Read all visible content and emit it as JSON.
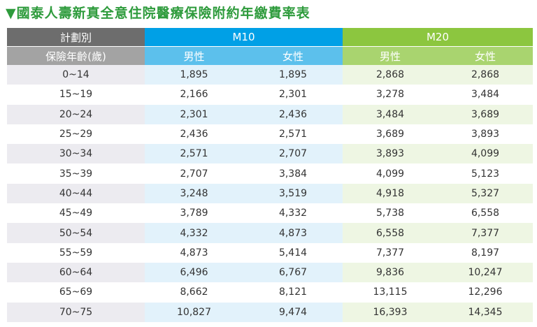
{
  "title": "▼國泰人壽新真全意住院醫療保險附約年繳費率表",
  "table": {
    "header": {
      "label": "計劃別",
      "plans": [
        "M10",
        "M20"
      ]
    },
    "subheader": {
      "label": "保險年齡(歲)",
      "columns": [
        "男性",
        "女性",
        "男性",
        "女性"
      ]
    },
    "rows": [
      [
        "0~14",
        "1,895",
        "1,895",
        "2,868",
        "2,868"
      ],
      [
        "15~19",
        "2,166",
        "2,301",
        "3,278",
        "3,484"
      ],
      [
        "20~24",
        "2,301",
        "2,436",
        "3,484",
        "3,689"
      ],
      [
        "25~29",
        "2,436",
        "2,571",
        "3,689",
        "3,893"
      ],
      [
        "30~34",
        "2,571",
        "2,707",
        "3,893",
        "4,099"
      ],
      [
        "35~39",
        "2,707",
        "3,384",
        "4,099",
        "5,123"
      ],
      [
        "40~44",
        "3,248",
        "3,519",
        "4,918",
        "5,327"
      ],
      [
        "45~49",
        "3,789",
        "4,332",
        "5,738",
        "6,558"
      ],
      [
        "50~54",
        "4,332",
        "4,873",
        "6,558",
        "7,377"
      ],
      [
        "55~59",
        "4,873",
        "5,414",
        "7,377",
        "8,197"
      ],
      [
        "60~64",
        "6,496",
        "6,767",
        "9,836",
        "10,247"
      ],
      [
        "65~69",
        "8,662",
        "8,121",
        "13,115",
        "12,296"
      ],
      [
        "70~75",
        "10,827",
        "9,474",
        "16,393",
        "14,345"
      ]
    ]
  }
}
